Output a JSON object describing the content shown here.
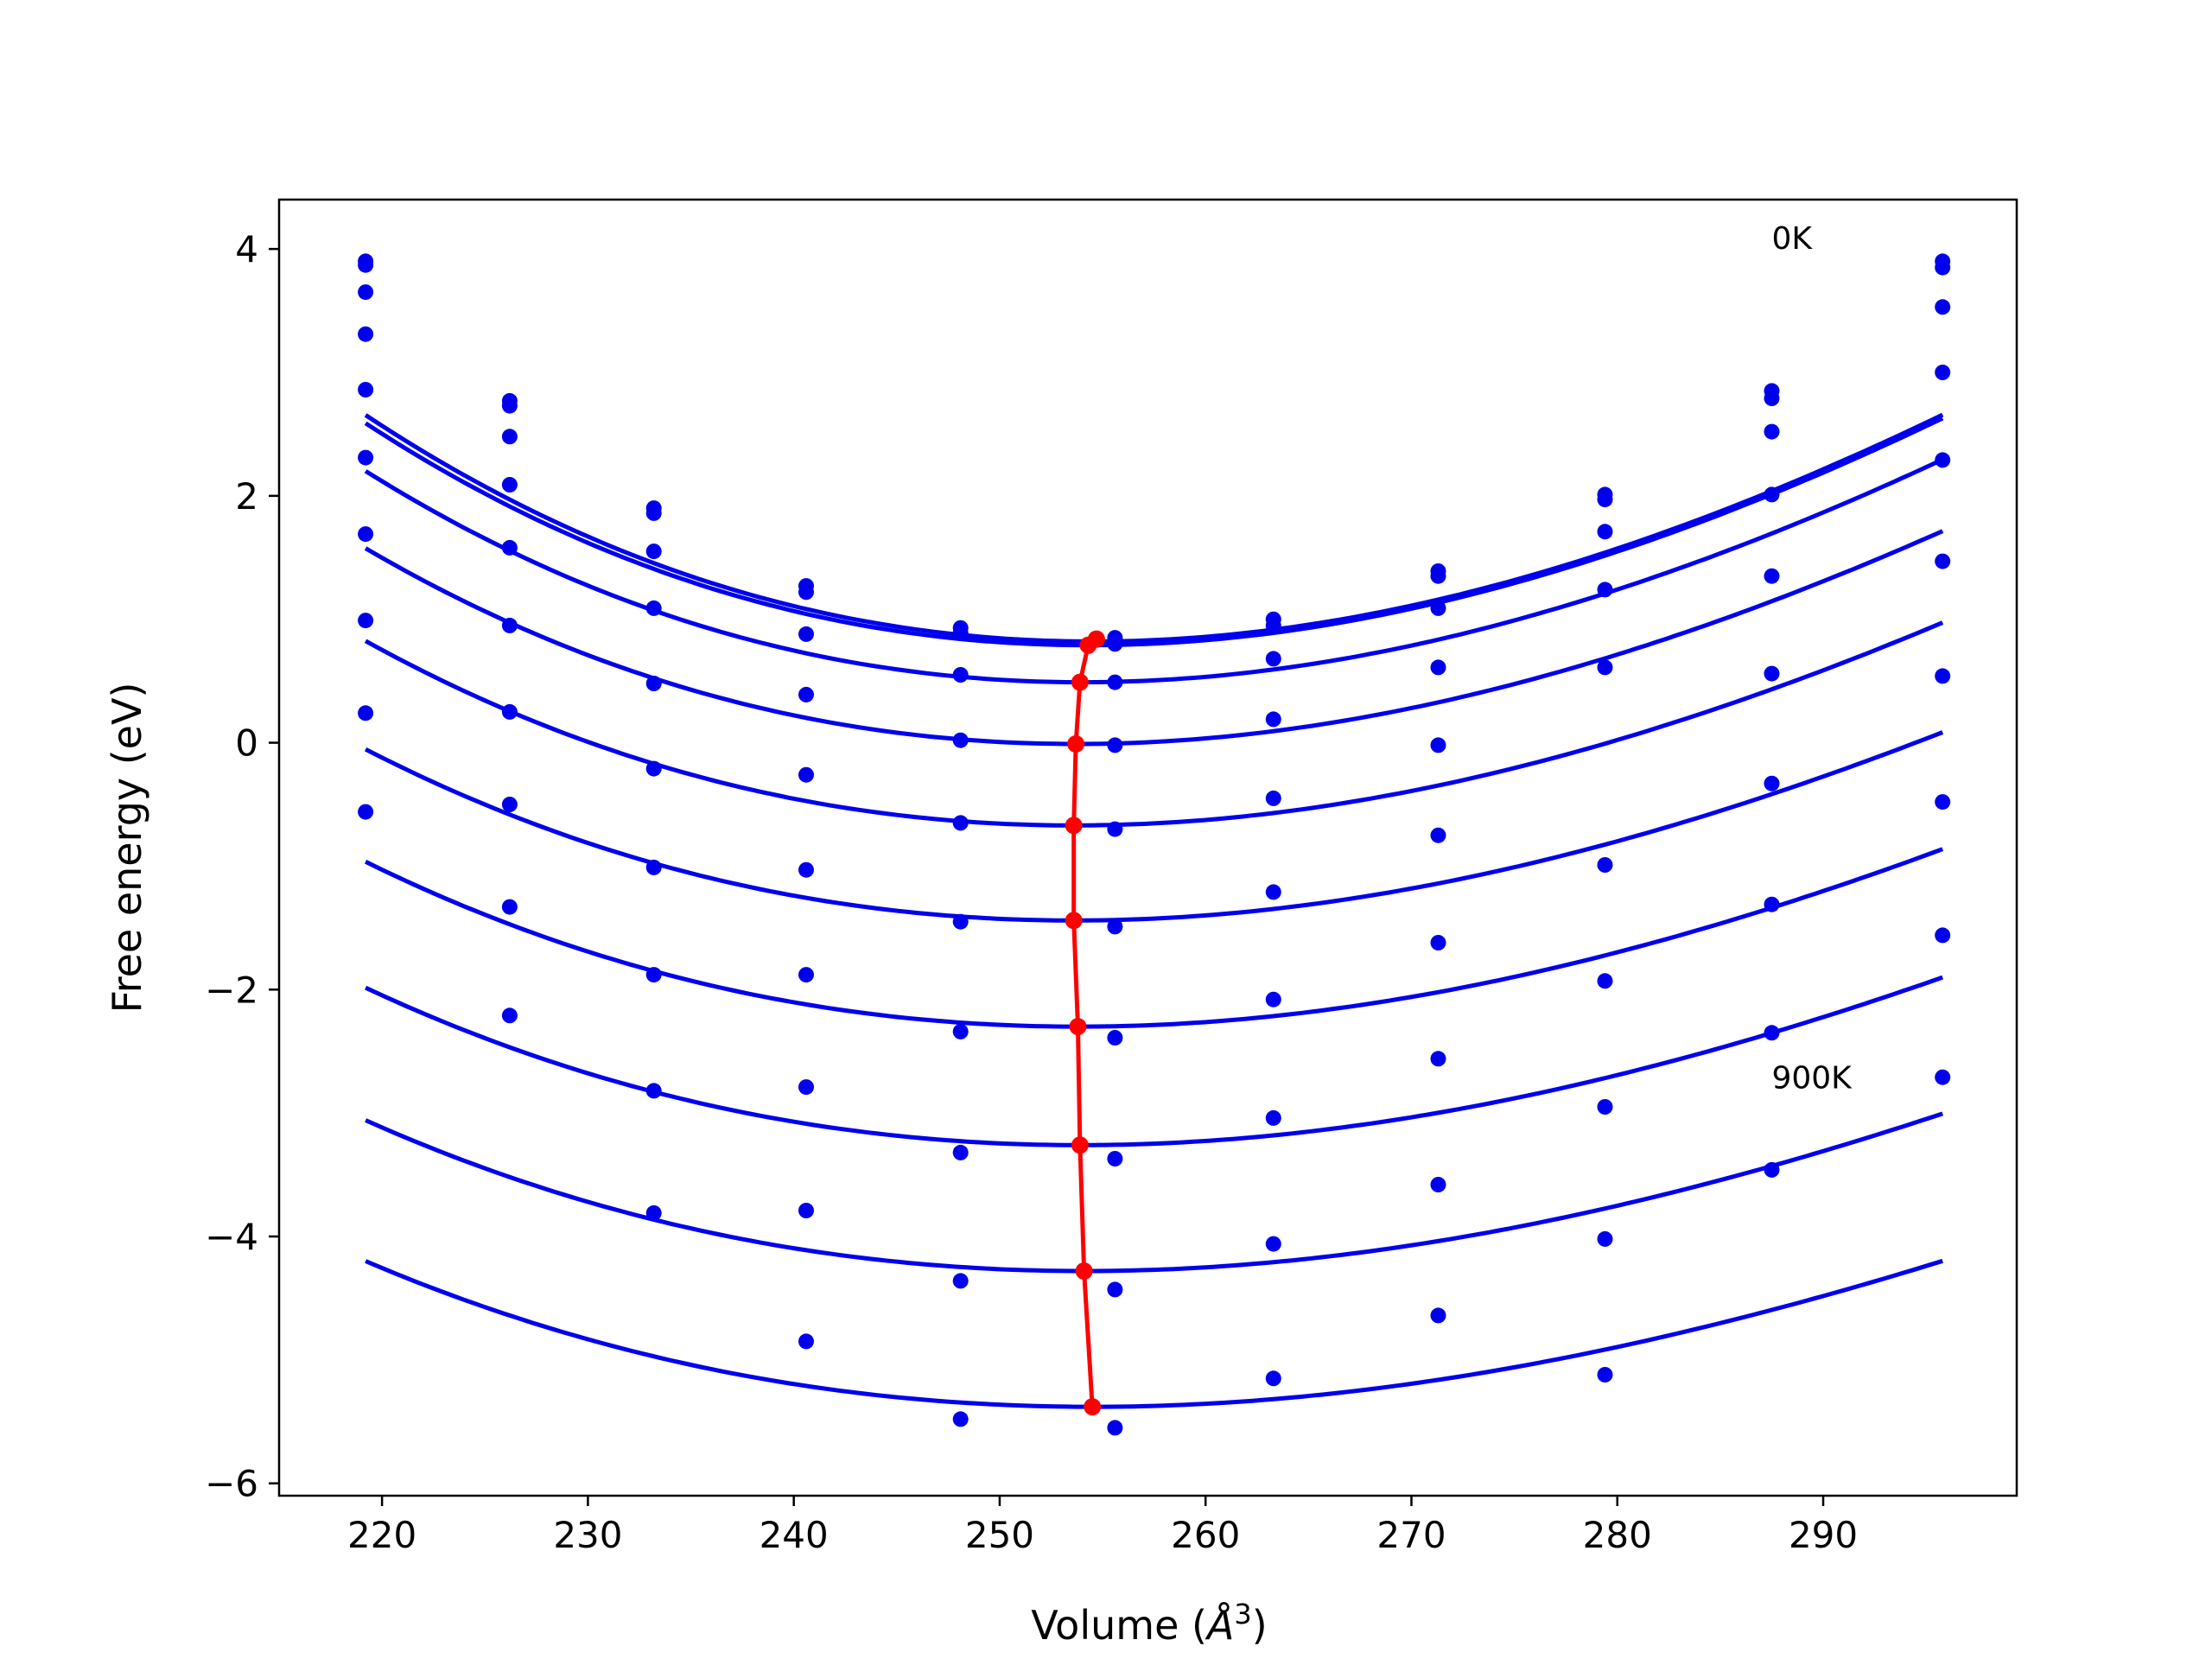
{
  "chart_data": {
    "type": "line",
    "xlabel": "Volume (",
    "xlabel_unit": "Å",
    "xlabel_exp": "3",
    "xlabel_close": ")",
    "ylabel": "Free energy (eV)",
    "xlim": [
      215,
      299.4
    ],
    "ylim": [
      -6.1,
      4.4
    ],
    "xticks": [
      220,
      230,
      240,
      250,
      260,
      270,
      280,
      290
    ],
    "yticks": [
      4,
      2,
      0,
      -2,
      -4,
      -6
    ],
    "ytick_labels": [
      "4",
      "2",
      "0",
      "−2",
      "−4",
      "−6"
    ],
    "annotations": [
      {
        "text": "0K",
        "x": 287.5,
        "y": 4.0
      },
      {
        "text": "900K",
        "x": 287.5,
        "y": -2.8
      }
    ],
    "volumes": [
      219.2,
      226.2,
      233.2,
      240.6,
      248.1,
      255.6,
      263.3,
      271.3,
      279.4,
      287.5,
      295.8
    ],
    "series": [
      {
        "points": [
          3.9,
          2.77,
          1.9,
          1.27,
          0.93,
          0.85,
          1.0,
          1.39,
          2.01,
          2.85,
          3.9
        ],
        "fit": {
          "a": 0.00129,
          "v0": 254.5,
          "e0": 0.82
        }
      },
      {
        "points": [
          3.87,
          2.73,
          1.86,
          1.22,
          0.89,
          0.8,
          0.95,
          1.35,
          1.97,
          2.79,
          3.85
        ],
        "fit": {
          "a": 0.00128,
          "v0": 254.3,
          "e0": 0.79
        }
      },
      {
        "points": [
          3.65,
          2.48,
          1.55,
          0.88,
          0.55,
          0.49,
          0.68,
          1.09,
          1.71,
          2.52,
          3.53
        ],
        "fit": {
          "a": 0.00124,
          "v0": 254.0,
          "e0": 0.49
        }
      },
      {
        "points": [
          3.31,
          2.09,
          1.09,
          0.39,
          0.02,
          -0.02,
          0.19,
          0.61,
          1.24,
          2.01,
          3.0
        ],
        "fit": {
          "a": 0.00117,
          "v0": 253.7,
          "e0": -0.01
        }
      },
      {
        "points": [
          2.86,
          1.58,
          0.48,
          -0.26,
          -0.65,
          -0.7,
          -0.45,
          -0.02,
          0.61,
          1.35,
          2.29
        ],
        "fit": {
          "a": 0.00111,
          "v0": 253.6,
          "e0": -0.67
        }
      },
      {
        "points": [
          2.31,
          0.95,
          -0.21,
          -1.03,
          -1.45,
          -1.49,
          -1.21,
          -0.75,
          -0.99,
          0.56,
          1.47
        ],
        "fit": {
          "a": 0.00103,
          "v0": 253.6,
          "e0": -1.44
        }
      },
      {
        "points": [
          1.69,
          0.25,
          -1.01,
          -1.88,
          -2.34,
          -2.39,
          -2.08,
          -1.62,
          -1.93,
          -0.33,
          0.54
        ],
        "fit": {
          "a": 0.00098,
          "v0": 253.8,
          "e0": -2.3
        }
      },
      {
        "points": [
          0.99,
          -0.5,
          -1.88,
          -2.79,
          -3.32,
          -3.37,
          -3.04,
          -2.56,
          -2.95,
          -1.31,
          -0.48
        ],
        "fit": {
          "a": 0.00093,
          "v0": 253.9,
          "e0": -3.26
        }
      },
      {
        "points": [
          0.24,
          -1.33,
          -2.82,
          -3.79,
          -4.36,
          -4.43,
          -4.06,
          -3.58,
          -4.02,
          -2.35,
          -1.56
        ],
        "fit": {
          "a": 0.00088,
          "v0": 254.1,
          "e0": -4.28
        }
      },
      {
        "points": [
          -0.56,
          -2.21,
          -3.81,
          -4.85,
          -5.48,
          -5.55,
          -5.15,
          -4.64,
          -5.12,
          -3.46,
          -2.71
        ],
        "fit": {
          "a": 0.00083,
          "v0": 254.5,
          "e0": -5.38
        }
      }
    ],
    "minima": [
      {
        "x": 254.7,
        "y": 0.84
      },
      {
        "x": 254.3,
        "y": 0.79
      },
      {
        "x": 253.9,
        "y": 0.49
      },
      {
        "x": 253.7,
        "y": -0.01
      },
      {
        "x": 253.6,
        "y": -0.67
      },
      {
        "x": 253.6,
        "y": -1.44
      },
      {
        "x": 253.8,
        "y": -2.3
      },
      {
        "x": 253.9,
        "y": -3.26
      },
      {
        "x": 254.1,
        "y": -4.28
      },
      {
        "x": 254.5,
        "y": -5.38
      }
    ],
    "colors": {
      "fit": "#0000ee",
      "points": "#0000ee",
      "minima": "#ff0000",
      "axes": "#000000"
    }
  }
}
